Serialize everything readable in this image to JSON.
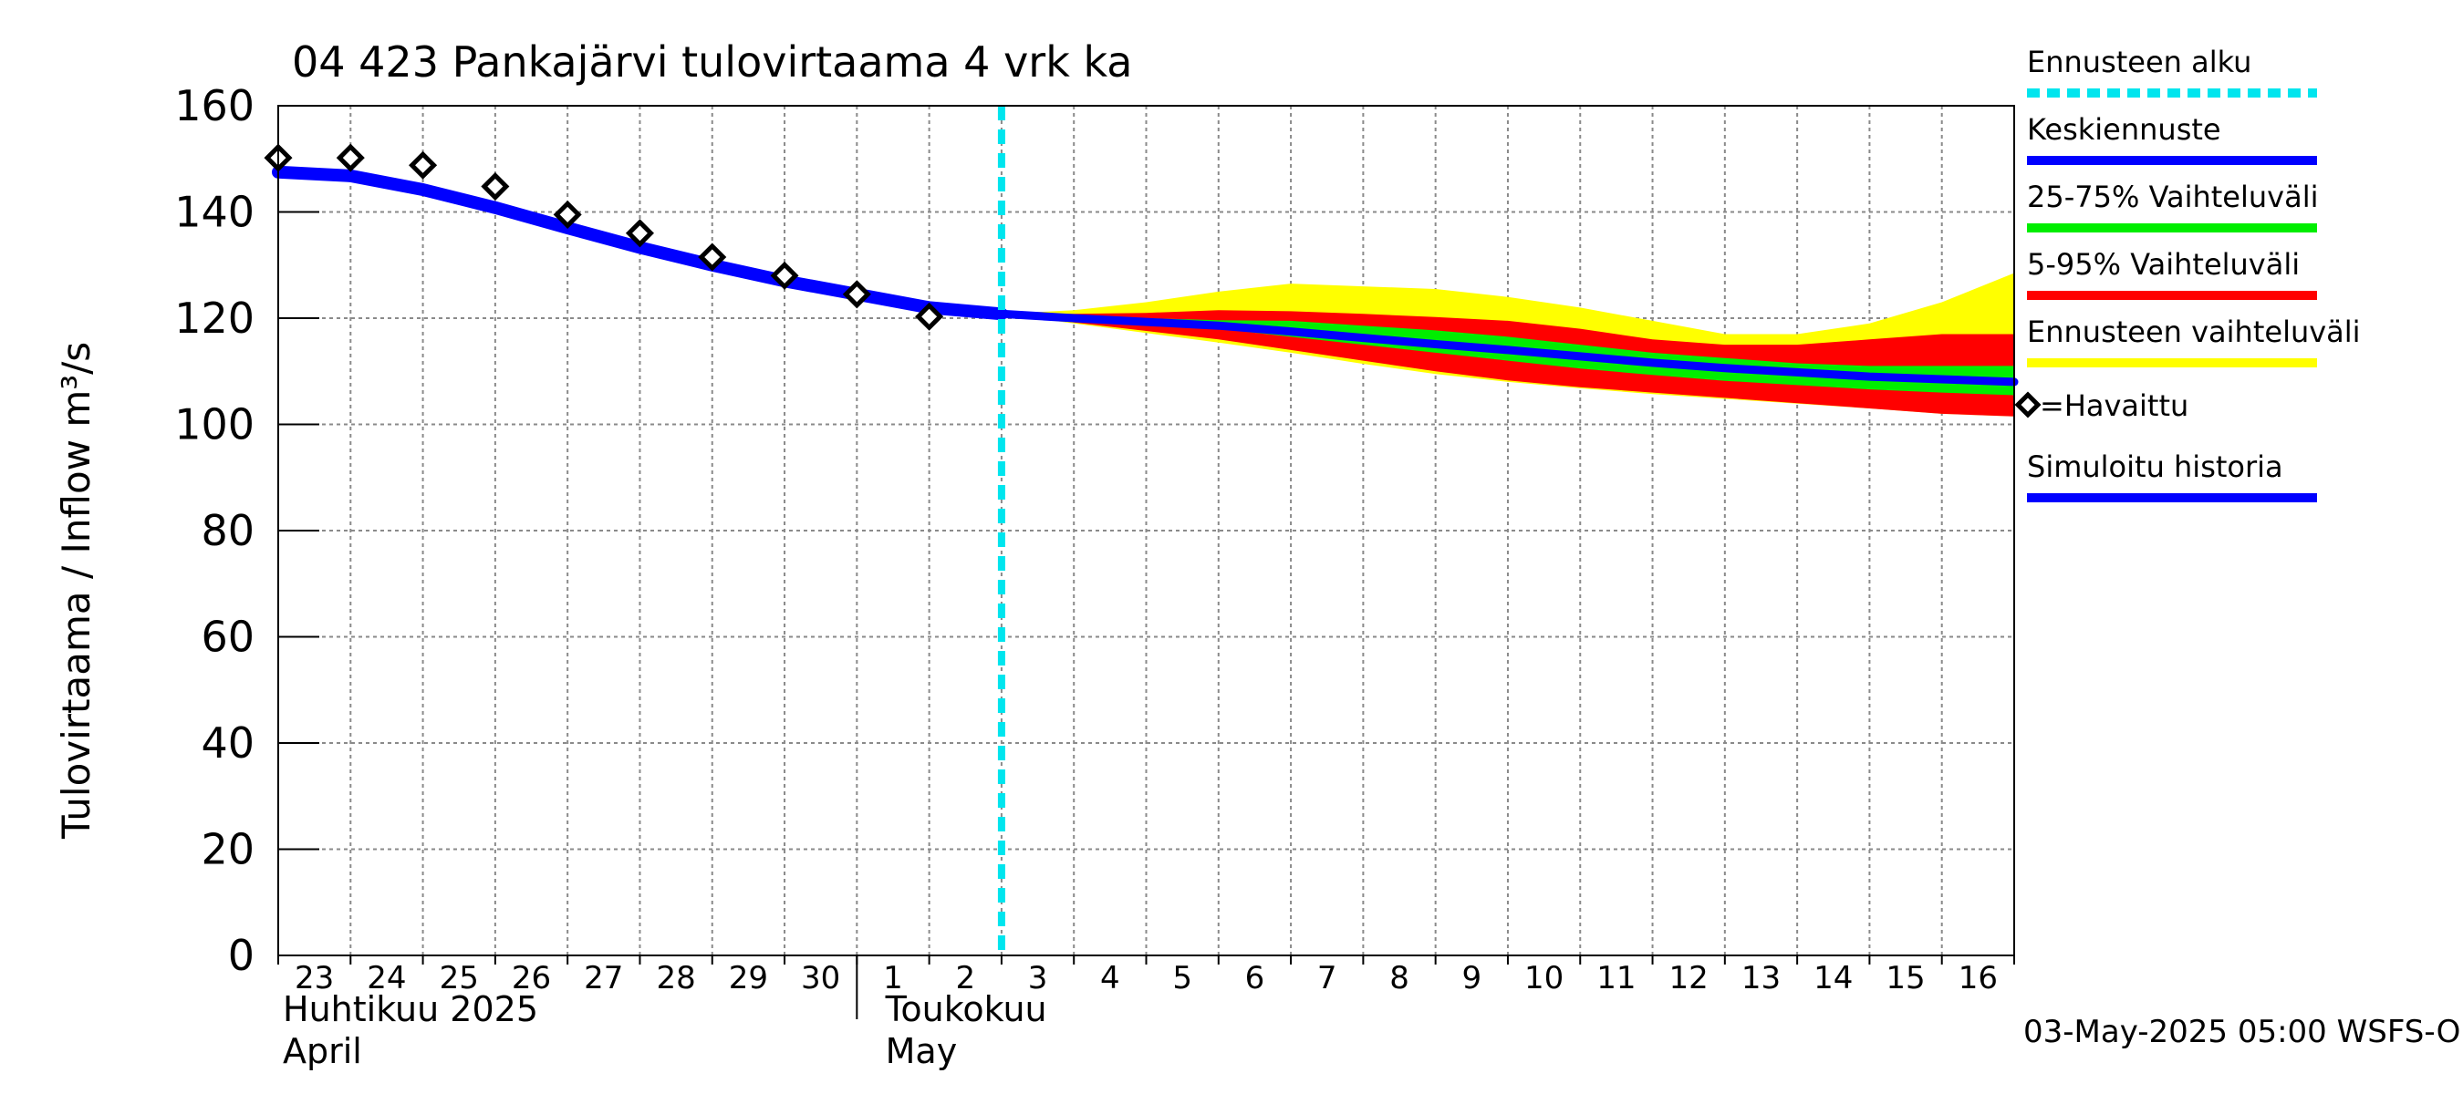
{
  "chart_data": {
    "type": "line",
    "title": "04 423 Pankajärvi tulovirtaama 4 vrk ka",
    "ylabel": "Tulovirtaama / Inflow    m³/s",
    "ylim": [
      0,
      160
    ],
    "yticks": [
      0,
      20,
      40,
      60,
      80,
      100,
      120,
      140,
      160
    ],
    "xlim": [
      0,
      24
    ],
    "day_ticks": [
      "23",
      "24",
      "25",
      "26",
      "27",
      "28",
      "29",
      "30",
      "1",
      "2",
      "3",
      "4",
      "5",
      "6",
      "7",
      "8",
      "9",
      "10",
      "11",
      "12",
      "13",
      "14",
      "15",
      "16"
    ],
    "month_labels": [
      {
        "fi": "Huhtikuu  2025",
        "en": "April"
      },
      {
        "fi": "Toukokuu",
        "en": "May"
      }
    ],
    "forecast_start_x": 10,
    "observed": {
      "x": [
        0,
        1,
        2,
        3,
        4,
        5,
        6,
        7,
        8,
        9
      ],
      "y": [
        150.2,
        150.2,
        148.8,
        144.8,
        139.5,
        136,
        131.5,
        128,
        124.5,
        120.3
      ]
    },
    "simulated_history": {
      "x": [
        0,
        1,
        2,
        3,
        4,
        5,
        6,
        7,
        8,
        9,
        10
      ],
      "y": [
        147.5,
        146.8,
        144.2,
        140.8,
        137,
        133.3,
        130,
        127,
        124.5,
        122,
        120.8
      ]
    },
    "forecast": {
      "x": [
        10,
        11,
        12,
        13,
        14,
        15,
        16,
        17,
        18,
        19,
        20,
        21,
        22,
        23,
        24
      ],
      "median": [
        120.8,
        120,
        119.3,
        118.6,
        117.5,
        116.3,
        115.1,
        114,
        112.8,
        111.6,
        110.6,
        109.8,
        109,
        108.5,
        108
      ],
      "p25": [
        120.8,
        119.8,
        118.8,
        118,
        116.5,
        115,
        113.5,
        112,
        110.5,
        109.3,
        108.2,
        107.4,
        106.6,
        106,
        105.5
      ],
      "p75": [
        120.8,
        120.2,
        120,
        119.6,
        119.5,
        118.6,
        117.7,
        116.5,
        115,
        113.5,
        112.5,
        111.5,
        111,
        111,
        111
      ],
      "p5": [
        120.8,
        119.2,
        117.6,
        116,
        114,
        112,
        110,
        108.3,
        107,
        106,
        105,
        104,
        103,
        102,
        101.5
      ],
      "p95": [
        120.8,
        120.8,
        121,
        121.5,
        121.3,
        120.8,
        120.2,
        119.5,
        118,
        116,
        115,
        115,
        116,
        117,
        117
      ],
      "min": [
        120.8,
        119,
        117.2,
        115.4,
        113.5,
        111.4,
        109.5,
        108,
        106.8,
        105.7,
        104.8,
        103.9,
        103,
        102,
        101.5
      ],
      "max": [
        120.8,
        121.5,
        123,
        125,
        126.5,
        126,
        125.5,
        124,
        122,
        119.5,
        117,
        117,
        119,
        123,
        128.5
      ]
    },
    "legend": [
      {
        "label": "Ennusteen alku",
        "color": "#00e5ee",
        "style": "dashed"
      },
      {
        "label": "Keskiennuste",
        "color": "#0000ff",
        "style": "solid"
      },
      {
        "label": "25-75% Vaihteluväli",
        "color": "#00ee00",
        "style": "solid"
      },
      {
        "label": "5-95% Vaihteluväli",
        "color": "#ff0000",
        "style": "solid"
      },
      {
        "label": "Ennusteen vaihteluväli",
        "color": "#ffff00",
        "style": "solid"
      },
      {
        "label": "=Havaittu",
        "color": "#000000",
        "style": "marker"
      },
      {
        "label": "Simuloitu historia",
        "color": "#0000ff",
        "style": "solid"
      }
    ],
    "legend_position": "right",
    "grid": true
  },
  "footer": "03-May-2025 05:00 WSFS-O"
}
